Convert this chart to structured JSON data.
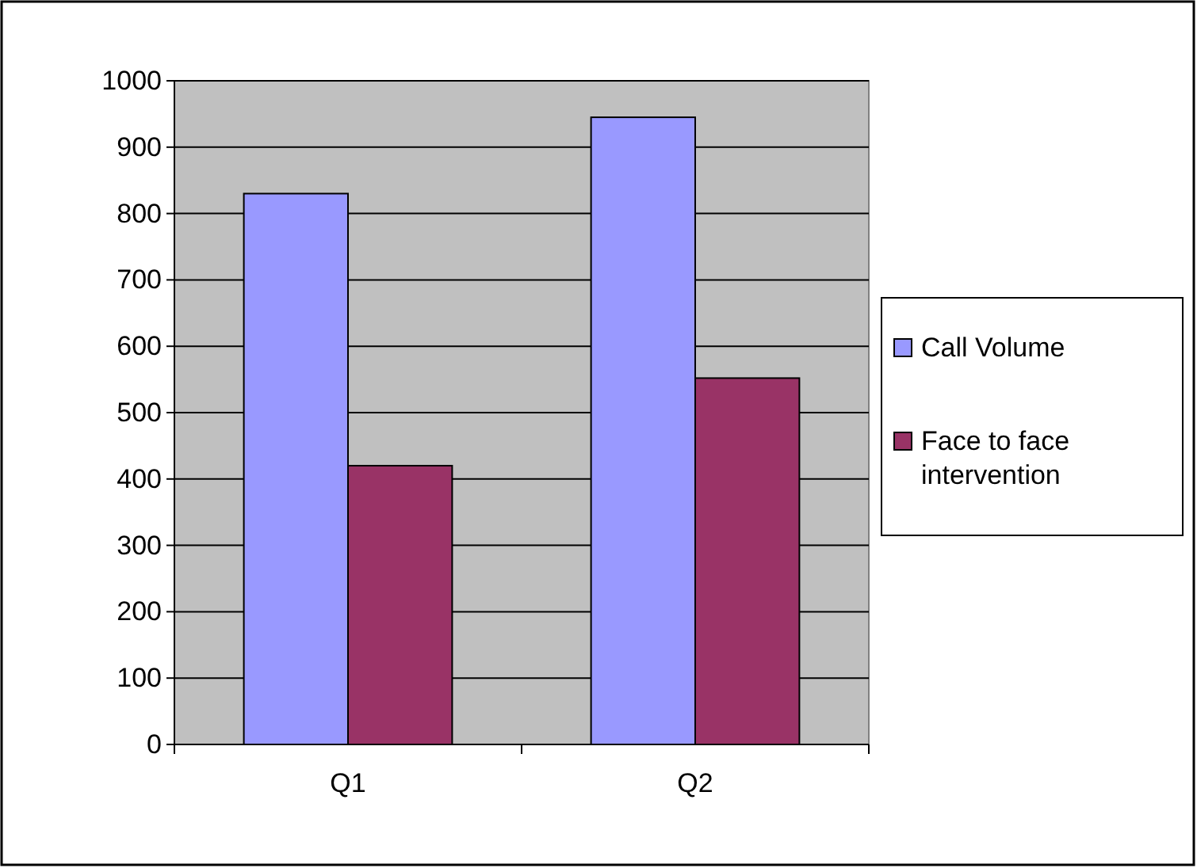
{
  "chart_data": {
    "type": "bar",
    "categories": [
      "Q1",
      "Q2"
    ],
    "series": [
      {
        "name": "Call Volume",
        "color": "#9999ff",
        "values": [
          830,
          945
        ]
      },
      {
        "name": "Face to face intervention",
        "color": "#993366",
        "values": [
          420,
          552
        ]
      }
    ],
    "ylim": [
      0,
      1000
    ],
    "yticks": [
      0,
      100,
      200,
      300,
      400,
      500,
      600,
      700,
      800,
      900,
      1000
    ],
    "grid": "y",
    "legend": "right"
  }
}
